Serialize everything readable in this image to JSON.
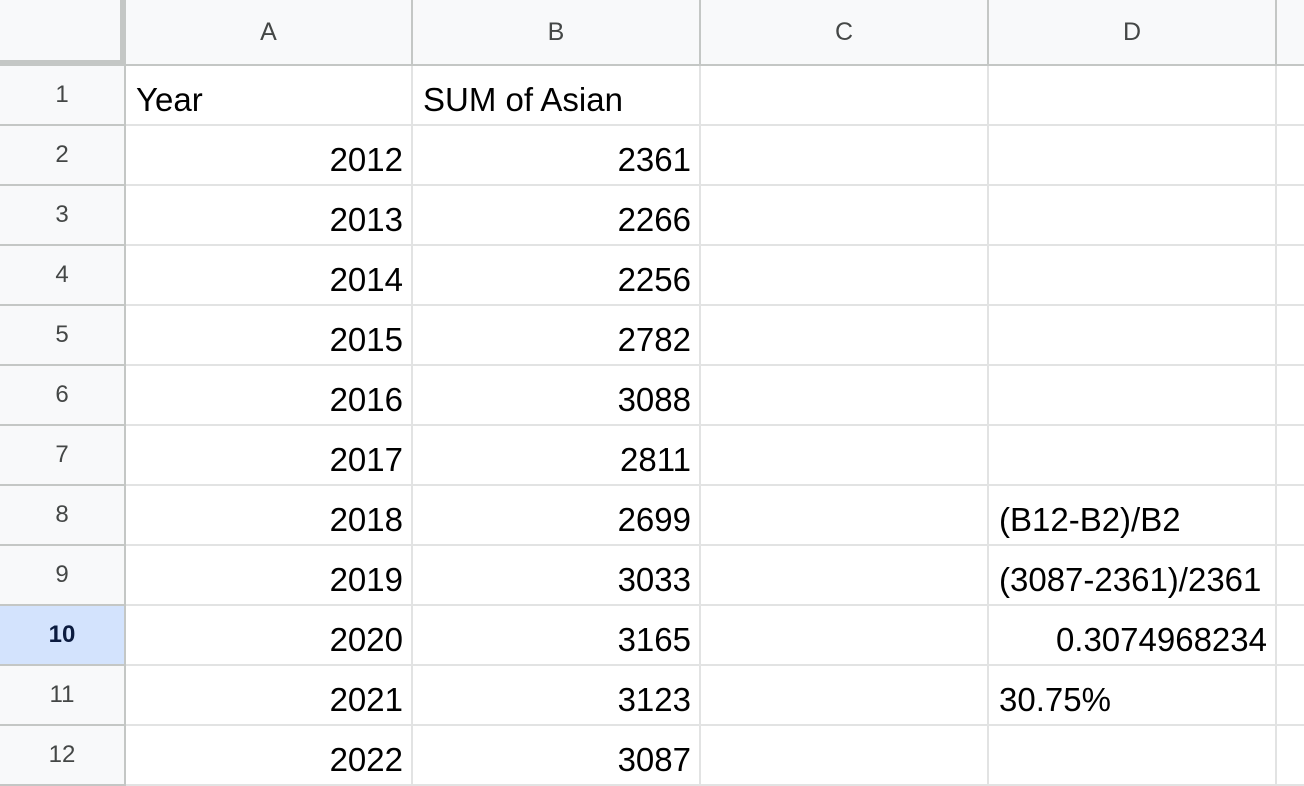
{
  "columns": [
    "A",
    "B",
    "C",
    "D"
  ],
  "rows": [
    {
      "num": "1",
      "A": "Year",
      "B": "SUM of Asian",
      "C": "",
      "D": ""
    },
    {
      "num": "2",
      "A": "2012",
      "B": "2361",
      "C": "",
      "D": ""
    },
    {
      "num": "3",
      "A": "2013",
      "B": "2266",
      "C": "",
      "D": ""
    },
    {
      "num": "4",
      "A": "2014",
      "B": "2256",
      "C": "",
      "D": ""
    },
    {
      "num": "5",
      "A": "2015",
      "B": "2782",
      "C": "",
      "D": ""
    },
    {
      "num": "6",
      "A": "2016",
      "B": "3088",
      "C": "",
      "D": ""
    },
    {
      "num": "7",
      "A": "2017",
      "B": "2811",
      "C": "",
      "D": ""
    },
    {
      "num": "8",
      "A": "2018",
      "B": "2699",
      "C": "",
      "D": "(B12-B2)/B2"
    },
    {
      "num": "9",
      "A": "2019",
      "B": "3033",
      "C": "",
      "D": "(3087-2361)/2361"
    },
    {
      "num": "10",
      "A": "2020",
      "B": "3165",
      "C": "",
      "D": "0.3074968234"
    },
    {
      "num": "11",
      "A": "2021",
      "B": "3123",
      "C": "",
      "D": "30.75%"
    },
    {
      "num": "12",
      "A": "2022",
      "B": "3087",
      "C": "",
      "D": ""
    }
  ],
  "selected_row": "10",
  "colors": {
    "header_bg": "#f8f9fa",
    "selected_header_bg": "#d3e3fd",
    "gridline": "#e2e3e3",
    "header_border": "#c4c7c5"
  }
}
